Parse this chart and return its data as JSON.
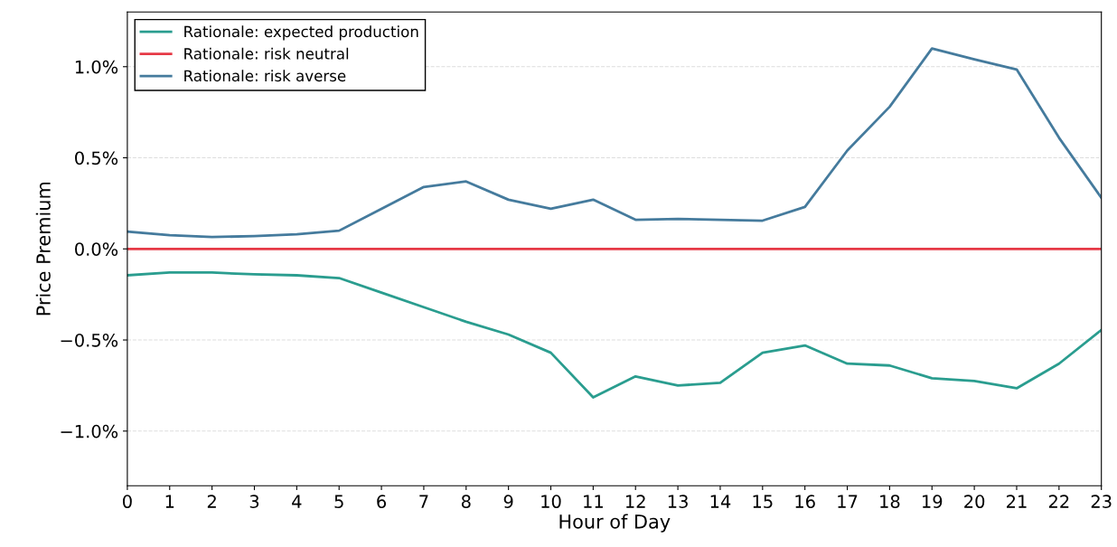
{
  "chart_data": {
    "type": "line",
    "xlabel": "Hour of Day",
    "ylabel": "Price Premium",
    "x": [
      0,
      1,
      2,
      3,
      4,
      5,
      6,
      7,
      8,
      9,
      10,
      11,
      12,
      13,
      14,
      15,
      16,
      17,
      18,
      19,
      20,
      21,
      22,
      23
    ],
    "series": [
      {
        "name": "Rationale: expected production",
        "color": "#2a9d8f",
        "values": [
          -0.145,
          -0.13,
          -0.13,
          -0.14,
          -0.145,
          -0.16,
          -0.24,
          -0.32,
          -0.4,
          -0.47,
          -0.57,
          -0.815,
          -0.7,
          -0.75,
          -0.735,
          -0.57,
          -0.53,
          -0.63,
          -0.64,
          -0.71,
          -0.725,
          -0.765,
          -0.63,
          -0.445
        ]
      },
      {
        "name": "Rationale: risk neutral",
        "color": "#e63946",
        "values": [
          0,
          0,
          0,
          0,
          0,
          0,
          0,
          0,
          0,
          0,
          0,
          0,
          0,
          0,
          0,
          0,
          0,
          0,
          0,
          0,
          0,
          0,
          0,
          0
        ]
      },
      {
        "name": "Rationale: risk averse",
        "color": "#457b9d",
        "values": [
          0.095,
          0.075,
          0.065,
          0.07,
          0.08,
          0.1,
          0.22,
          0.34,
          0.37,
          0.27,
          0.22,
          0.27,
          0.16,
          0.165,
          0.16,
          0.155,
          0.23,
          0.54,
          0.78,
          1.1,
          1.04,
          0.985,
          0.61,
          0.28
        ]
      }
    ],
    "xlim": [
      0,
      23
    ],
    "xticks": [
      0,
      1,
      2,
      3,
      4,
      5,
      6,
      7,
      8,
      9,
      10,
      11,
      12,
      13,
      14,
      15,
      16,
      17,
      18,
      19,
      20,
      21,
      22,
      23
    ],
    "ylim": [
      -1.3,
      1.3
    ],
    "yticks": [
      {
        "value": -1.0,
        "label": "−1.0%"
      },
      {
        "value": -0.5,
        "label": "−0.5%"
      },
      {
        "value": 0.0,
        "label": "0.0%"
      },
      {
        "value": 0.5,
        "label": "0.5%"
      },
      {
        "value": 1.0,
        "label": "1.0%"
      }
    ],
    "grid": "y",
    "legend": "top left",
    "marker": "none",
    "line_style": "solid"
  }
}
